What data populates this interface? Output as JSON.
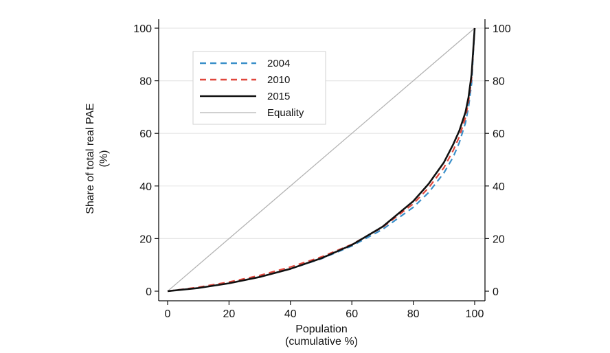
{
  "chart_data": {
    "type": "line",
    "title": "",
    "xlabel": [
      "Population",
      "(cumulative %)"
    ],
    "ylabel": [
      "Share of total real PAE",
      "(%)"
    ],
    "xlim": [
      0,
      100
    ],
    "ylim": [
      0,
      100
    ],
    "x_ticks": [
      "0",
      "20",
      "40",
      "60",
      "80",
      "100"
    ],
    "y_ticks": [
      "0",
      "20",
      "40",
      "60",
      "80",
      "100"
    ],
    "grid": true,
    "legend_position": "top-left",
    "series": [
      {
        "name": "2004",
        "color": "#3a8fc9",
        "style": "dashed",
        "points": [
          [
            0,
            0
          ],
          [
            10,
            1.4
          ],
          [
            20,
            3.2
          ],
          [
            30,
            5.5
          ],
          [
            40,
            8.5
          ],
          [
            50,
            12.3
          ],
          [
            60,
            17.2
          ],
          [
            70,
            23.5
          ],
          [
            80,
            31.9
          ],
          [
            85,
            37.5
          ],
          [
            90,
            45.0
          ],
          [
            93,
            51.0
          ],
          [
            95,
            56.5
          ],
          [
            97,
            64.0
          ],
          [
            98,
            70.0
          ],
          [
            99,
            79.0
          ],
          [
            100,
            100
          ]
        ]
      },
      {
        "name": "2010",
        "color": "#e0473c",
        "style": "dashed",
        "points": [
          [
            0,
            0
          ],
          [
            10,
            1.5
          ],
          [
            20,
            3.5
          ],
          [
            30,
            6.0
          ],
          [
            40,
            9.2
          ],
          [
            50,
            13.0
          ],
          [
            60,
            17.8
          ],
          [
            70,
            24.3
          ],
          [
            80,
            33.2
          ],
          [
            85,
            39.3
          ],
          [
            90,
            47.0
          ],
          [
            93,
            53.5
          ],
          [
            95,
            58.7
          ],
          [
            97,
            66.0
          ],
          [
            98,
            72.0
          ],
          [
            99,
            81.0
          ],
          [
            100,
            100
          ]
        ]
      },
      {
        "name": "2015",
        "color": "#111111",
        "style": "solid",
        "points": [
          [
            0,
            0
          ],
          [
            10,
            1.2
          ],
          [
            20,
            3.0
          ],
          [
            30,
            5.4
          ],
          [
            40,
            8.5
          ],
          [
            50,
            12.5
          ],
          [
            60,
            17.6
          ],
          [
            70,
            24.5
          ],
          [
            80,
            34.2
          ],
          [
            85,
            40.8
          ],
          [
            90,
            49.0
          ],
          [
            93,
            55.8
          ],
          [
            95,
            61.0
          ],
          [
            97,
            68.0
          ],
          [
            98,
            73.8
          ],
          [
            99,
            82.5
          ],
          [
            100,
            100
          ]
        ]
      },
      {
        "name": "Equality",
        "color": "#b3b3b3",
        "style": "solid",
        "points": [
          [
            0,
            0
          ],
          [
            100,
            100
          ]
        ]
      }
    ]
  }
}
